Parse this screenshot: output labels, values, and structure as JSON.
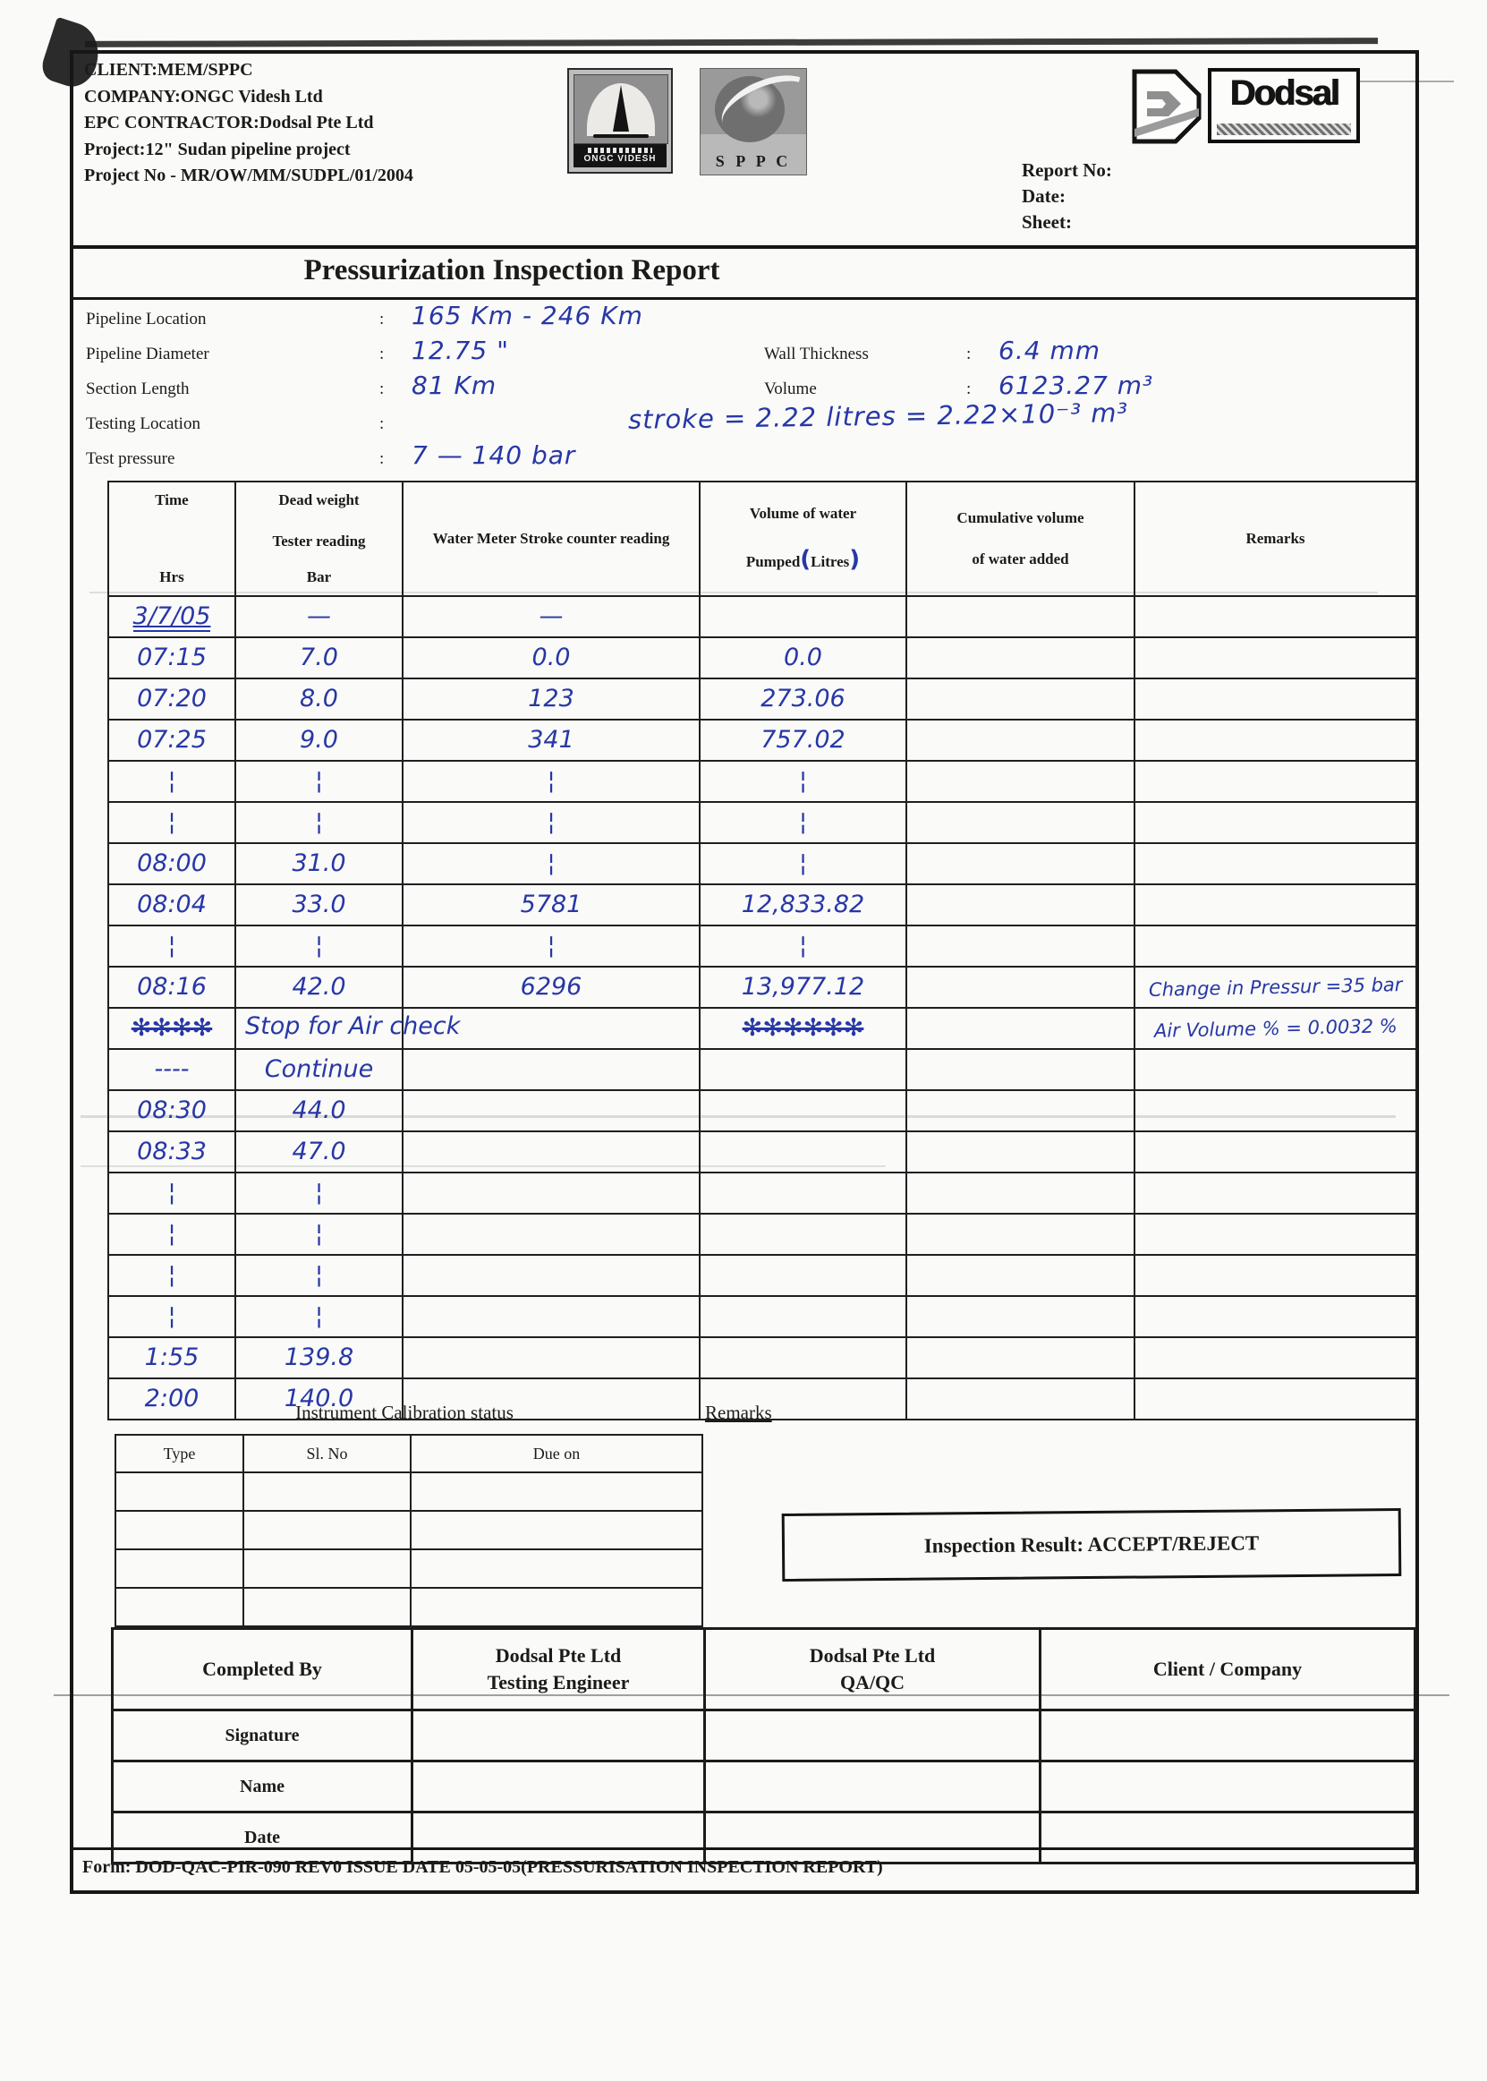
{
  "header": {
    "client_lines": [
      "CLIENT:MEM/SPPC",
      "COMPANY:ONGC Videsh Ltd",
      "EPC CONTRACTOR:Dodsal Pte Ltd",
      "Project:12\" Sudan pipeline project",
      "Project No - MR/OW/MM/SUDPL/01/2004"
    ],
    "report_no_label": "Report No:",
    "date_label": "Date:",
    "sheet_label": "Sheet:"
  },
  "logos": {
    "ongc": "ONGC VIDESH",
    "sppc": "S P P C",
    "dodsal": "Dodsal"
  },
  "title": "Pressurization Inspection Report",
  "fields": {
    "pipeline_location": {
      "label": "Pipeline Location",
      "value": "165 Km - 246 Km"
    },
    "pipeline_diameter": {
      "label": "Pipeline Diameter",
      "value": "12.75 \""
    },
    "section_length": {
      "label": "Section Length",
      "value": "81 Km"
    },
    "testing_location": {
      "label": "Testing Location",
      "value": ""
    },
    "test_pressure": {
      "label": "Test pressure",
      "value": "7 — 140 bar"
    },
    "wall_thickness": {
      "label": "Wall Thickness",
      "value": "6.4 mm"
    },
    "volume": {
      "label": "Volume",
      "value": "6123.27 m³"
    },
    "stroke_note": "stroke = 2.22 litres  =  2.22×10⁻³ m³",
    "colon": ":"
  },
  "table": {
    "headers": {
      "time_top": "Time",
      "time_unit": "Hrs",
      "dwt_l1": "Dead weight",
      "dwt_l2": "Tester reading",
      "dwt_unit": "Bar",
      "stroke": "Water Meter Stroke counter reading",
      "vol_l1": "Volume of water",
      "vol_l2_pre": "Pumped",
      "vol_l2_unit": "Litres",
      "cum_l1": "Cumulative volume",
      "cum_l2": "of water added",
      "remarks": "Remarks"
    },
    "rows": [
      {
        "time": "3/7/05",
        "dwt": "—",
        "stroke": "—",
        "vol": "",
        "cum": "",
        "remark": "",
        "u": true
      },
      {
        "time": "07:15",
        "dwt": "7.0",
        "stroke": "0.0",
        "vol": "0.0",
        "cum": "",
        "remark": ""
      },
      {
        "time": "07:20",
        "dwt": "8.0",
        "stroke": "123",
        "vol": "273.06",
        "cum": "",
        "remark": ""
      },
      {
        "time": "07:25",
        "dwt": "9.0",
        "stroke": "341",
        "vol": "757.02",
        "cum": "",
        "remark": ""
      },
      {
        "time": "¦",
        "dwt": "¦",
        "stroke": "¦",
        "vol": "¦",
        "cum": "",
        "remark": ""
      },
      {
        "time": "¦",
        "dwt": "¦",
        "stroke": "¦",
        "vol": "¦",
        "cum": "",
        "remark": ""
      },
      {
        "time": "08:00",
        "dwt": "31.0",
        "stroke": "¦",
        "vol": "¦",
        "cum": "",
        "remark": ""
      },
      {
        "time": "08:04",
        "dwt": "33.0",
        "stroke": "5781",
        "vol": "12,833.82",
        "cum": "",
        "remark": ""
      },
      {
        "time": "¦",
        "dwt": "¦",
        "stroke": "¦",
        "vol": "¦",
        "cum": "",
        "remark": ""
      },
      {
        "time": "08:16",
        "dwt": "42.0",
        "stroke": "6296",
        "vol": "13,977.12",
        "cum": "",
        "remark": "Change in Pressur =35 bar"
      },
      {
        "time": "✻✻✻✻",
        "dwt": "Stop for Air check",
        "stroke": "",
        "vol": "✻✻✻✻✻✻",
        "cum": "",
        "remark": "Air Volume % = 0.0032 %",
        "strike_time": true,
        "strike_vol": true,
        "span": true
      },
      {
        "time": "----",
        "dwt": "Continue",
        "stroke": "",
        "vol": "",
        "cum": "",
        "remark": ""
      },
      {
        "time": "08:30",
        "dwt": "44.0",
        "stroke": "",
        "vol": "",
        "cum": "",
        "remark": ""
      },
      {
        "time": "08:33",
        "dwt": "47.0",
        "stroke": "",
        "vol": "",
        "cum": "",
        "remark": ""
      },
      {
        "time": "¦",
        "dwt": "¦",
        "stroke": "",
        "vol": "",
        "cum": "",
        "remark": ""
      },
      {
        "time": "¦",
        "dwt": "¦",
        "stroke": "",
        "vol": "",
        "cum": "",
        "remark": ""
      },
      {
        "time": "¦",
        "dwt": "¦",
        "stroke": "",
        "vol": "",
        "cum": "",
        "remark": ""
      },
      {
        "time": "¦",
        "dwt": "¦",
        "stroke": "",
        "vol": "",
        "cum": "",
        "remark": ""
      },
      {
        "time": "1:55",
        "dwt": "139.8",
        "stroke": "",
        "vol": "",
        "cum": "",
        "remark": ""
      },
      {
        "time": "2:00",
        "dwt": "140.0",
        "stroke": "",
        "vol": "",
        "cum": "",
        "remark": ""
      }
    ]
  },
  "calibration": {
    "title": "Instrument Calibration status",
    "remarks_label": "Remarks",
    "columns": [
      "Type",
      "Sl. No",
      "Due on"
    ],
    "empty_rows": 4
  },
  "inspection_result": "Inspection Result: ACCEPT/REJECT",
  "signature": {
    "columns": [
      "Completed By",
      "Dodsal Pte Ltd\nTesting Engineer",
      "Dodsal Pte Ltd\nQA/QC",
      "Client / Company"
    ],
    "row_labels": [
      "Signature",
      "Name",
      "Date"
    ]
  },
  "footer": "Form: DOD-QAC-PIR-090 REV0 ISSUE DATE 05-05-05(PRESSURISATION INSPECTION REPORT)",
  "colors": {
    "ink_blue": "#2737a6",
    "print_black": "#1b1b1b"
  }
}
